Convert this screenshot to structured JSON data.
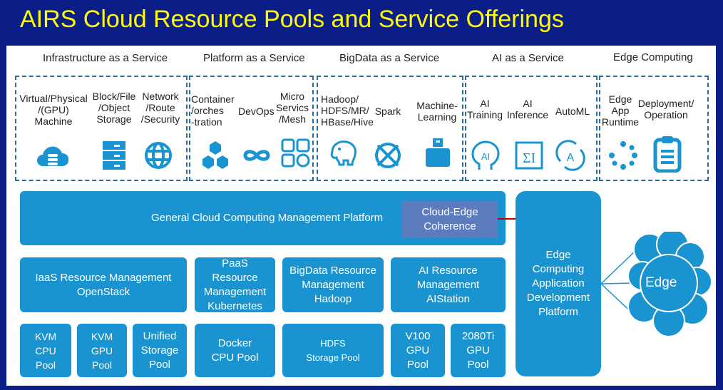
{
  "title": "AIRS Cloud Resource Pools and Service Offerings",
  "categories": [
    {
      "label": "Infrastructure as a Service",
      "items": [
        {
          "label": "Virtual/Physical\n/(GPU)\nMachine",
          "icon": "cloud-server-icon"
        },
        {
          "label": "Block/File\n/Object\nStorage",
          "icon": "storage-rack-icon"
        },
        {
          "label": "Network\n/Route\n/Security",
          "icon": "globe-icon"
        }
      ]
    },
    {
      "label": "Platform as a Service",
      "items": [
        {
          "label": "Container\n/orches\n-tration",
          "icon": "hexagons-icon"
        },
        {
          "label": "DevOps",
          "icon": "infinity-icon"
        },
        {
          "label": "Micro\nServics\n/Mesh",
          "icon": "grid-icon"
        }
      ]
    },
    {
      "label": "BigData as a Service",
      "items": [
        {
          "label": "Hadoop/\nHDFS/MR/\nHBase/Hive",
          "icon": "elephant-icon"
        },
        {
          "label": "Spark",
          "icon": "spark-icon"
        },
        {
          "label": "Machine-\nLearning",
          "icon": "usb-drive-icon"
        }
      ]
    },
    {
      "label": "AI as a Service",
      "items": [
        {
          "label": "AI\nTraining",
          "icon": "ai-head-icon"
        },
        {
          "label": "AI\nInference",
          "icon": "sigma-icon"
        },
        {
          "label": "AutoML",
          "icon": "automl-cycle-icon"
        }
      ]
    },
    {
      "label": "Edge Computing",
      "items": [
        {
          "label": "Edge\nApp\nRuntime",
          "icon": "loading-dots-icon"
        },
        {
          "label": "Deployment/\nOperation",
          "icon": "clipboard-icon"
        }
      ]
    }
  ],
  "platform": {
    "general": "General Cloud Computing Management Platform",
    "coherence": "Cloud-Edge\nCoherence",
    "edge_dev": "Edge\nComputing\nApplication\nDevelopment\nPlatform"
  },
  "management": [
    "IaaS Resource Management\nOpenStack",
    "PaaS\nResource\nManagement\nKubernetes",
    "BigData Resource\nManagement\nHadoop",
    "AI Resource\nManagement\nAIStation"
  ],
  "pools": [
    "KVM\nCPU\nPool",
    "KVM\nGPU\nPool",
    "Unified\nStorage\nPool",
    "Docker\nCPU Pool",
    "HDFS\nStorage Pool",
    "V100\nGPU\nPool",
    "2080Ti\nGPU\nPool"
  ],
  "edge_cloud": "Edge",
  "colors": {
    "background": "#0b1d86",
    "title": "#ffff00",
    "box": "#1a94d0",
    "coherence": "#5d7cc0",
    "connector": "#c00000"
  }
}
